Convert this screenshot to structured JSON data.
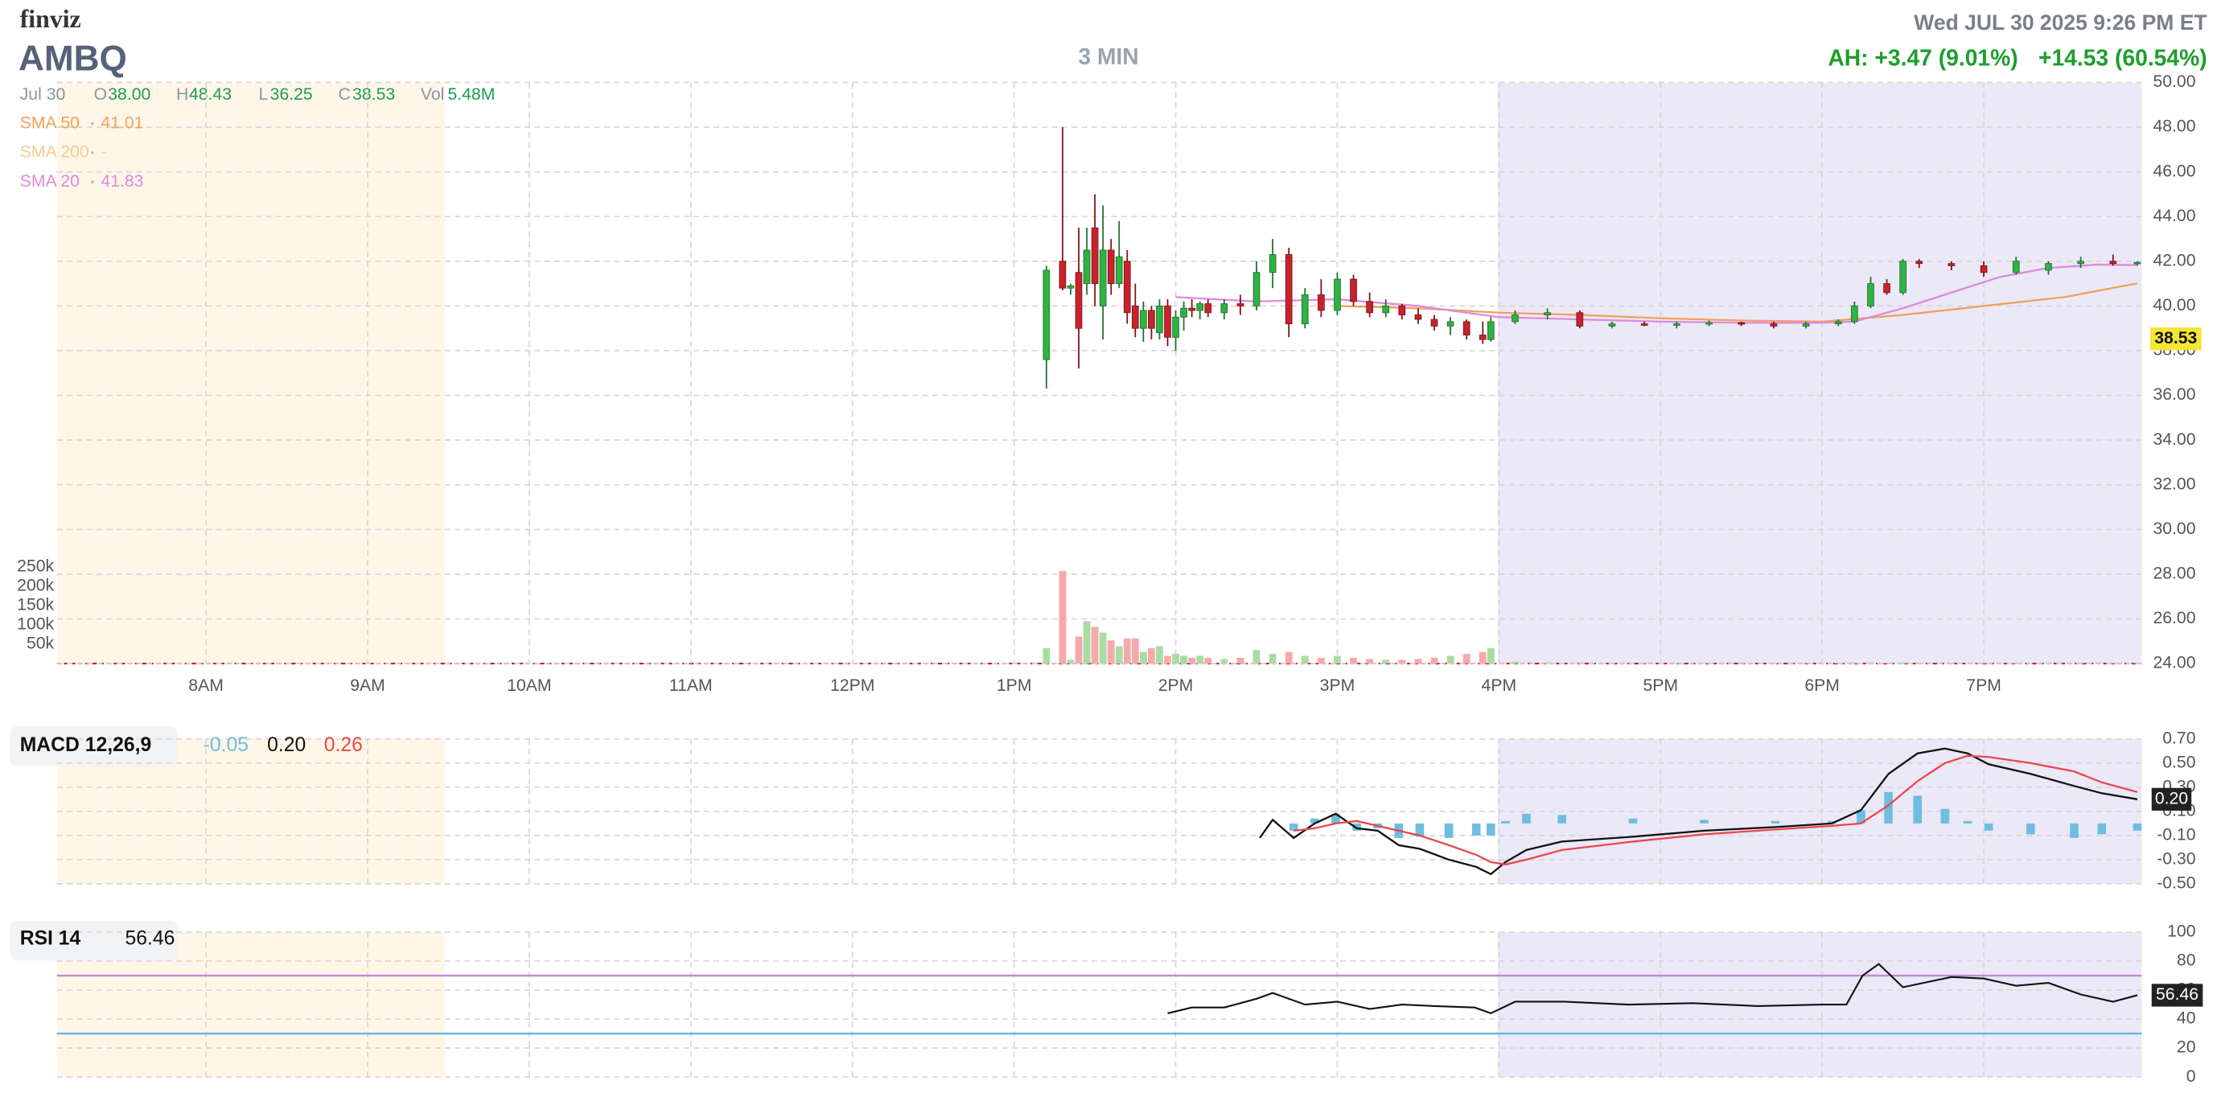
{
  "header": {
    "brand": "finviz",
    "ticker": "AMBQ",
    "timeframe": "3 MIN",
    "datetime": "Wed JUL 30 2025 9:26 PM ET",
    "after_hours": "AH: +3.47 (9.01%)",
    "change": "+14.53 (60.54%)",
    "date": "Jul 30",
    "stats": [
      {
        "label": "O",
        "value": "38.00"
      },
      {
        "label": "H",
        "value": "48.43"
      },
      {
        "label": "L",
        "value": "36.25"
      },
      {
        "label": "C",
        "value": "38.53"
      },
      {
        "label": "Vol",
        "value": "5.48M"
      }
    ]
  },
  "chart_data": [
    {
      "type": "candlestick",
      "up_color": "#2fb344",
      "down_color": "#c8232c",
      "volume_up_color": "#a9dca3",
      "volume_down_color": "#f6a9ab",
      "last_price": 38.53,
      "xlim": [
        7.077,
        19.977
      ],
      "xticks": [
        {
          "value": 8,
          "label": "8AM"
        },
        {
          "value": 9,
          "label": "9AM"
        },
        {
          "value": 10,
          "label": "10AM"
        },
        {
          "value": 11,
          "label": "11AM"
        },
        {
          "value": 12,
          "label": "12PM"
        },
        {
          "value": 13,
          "label": "1PM"
        },
        {
          "value": 14,
          "label": "2PM"
        },
        {
          "value": 15,
          "label": "3PM"
        },
        {
          "value": 16,
          "label": "4PM"
        },
        {
          "value": 17,
          "label": "5PM"
        },
        {
          "value": 18,
          "label": "6PM"
        },
        {
          "value": 19,
          "label": "7PM"
        }
      ],
      "ylim": [
        24,
        50
      ],
      "yticks": [
        {
          "value": 24,
          "label": "24.00"
        },
        {
          "value": 26,
          "label": "26.00"
        },
        {
          "value": 28,
          "label": "28.00"
        },
        {
          "value": 30,
          "label": "30.00"
        },
        {
          "value": 32,
          "label": "32.00"
        },
        {
          "value": 34,
          "label": "34.00"
        },
        {
          "value": 36,
          "label": "36.00"
        },
        {
          "value": 38,
          "label": "38.00"
        },
        {
          "value": 40,
          "label": "40.00"
        },
        {
          "value": 42,
          "label": "42.00"
        },
        {
          "value": 44,
          "label": "44.00"
        },
        {
          "value": 46,
          "label": "46.00"
        },
        {
          "value": 48,
          "label": "48.00"
        },
        {
          "value": 50,
          "label": "50.00"
        }
      ],
      "volume_lim": [
        0,
        250000
      ],
      "volume_ticks": [
        {
          "value": 50000,
          "label": "50k"
        },
        {
          "value": 100000,
          "label": "100k"
        },
        {
          "value": 150000,
          "label": "150k"
        },
        {
          "value": 200000,
          "label": "200k"
        },
        {
          "value": 250000,
          "label": "250k"
        }
      ],
      "x": [
        13.2,
        13.3,
        13.35,
        13.4,
        13.45,
        13.5,
        13.55,
        13.6,
        13.65,
        13.7,
        13.75,
        13.8,
        13.85,
        13.9,
        13.95,
        14.0,
        14.05,
        14.1,
        14.15,
        14.2,
        14.3,
        14.4,
        14.5,
        14.6,
        14.7,
        14.8,
        14.9,
        15.0,
        15.1,
        15.2,
        15.3,
        15.4,
        15.5,
        15.6,
        15.7,
        15.8,
        15.9,
        15.95,
        16.1,
        16.3,
        16.5,
        16.7,
        16.9,
        17.1,
        17.3,
        17.5,
        17.7,
        17.9,
        18.1,
        18.2,
        18.3,
        18.4,
        18.5,
        18.6,
        18.8,
        19.0,
        19.2,
        19.4,
        19.6,
        19.8,
        19.95
      ],
      "open": [
        37.6,
        42.0,
        40.8,
        41.5,
        41.0,
        43.5,
        40.0,
        42.5,
        41.0,
        42.0,
        40.0,
        39.0,
        39.8,
        38.8,
        40.0,
        38.6,
        39.5,
        39.9,
        39.8,
        40.1,
        39.7,
        40.1,
        40.0,
        41.5,
        42.3,
        39.2,
        40.5,
        39.8,
        41.2,
        40.2,
        39.7,
        40.0,
        39.6,
        39.4,
        39.1,
        39.3,
        38.7,
        38.5,
        39.3,
        39.6,
        39.7,
        39.1,
        39.2,
        39.15,
        39.2,
        39.25,
        39.2,
        39.1,
        39.2,
        39.3,
        40.0,
        41.0,
        40.6,
        42.0,
        41.9,
        41.8,
        41.5,
        41.6,
        41.9,
        42.0,
        41.9
      ],
      "high": [
        41.8,
        48.0,
        41.0,
        43.5,
        43.5,
        45.0,
        44.5,
        43.0,
        43.8,
        42.5,
        41.0,
        40.2,
        40.0,
        40.3,
        40.3,
        39.8,
        40.2,
        40.3,
        40.2,
        40.3,
        40.3,
        40.5,
        42.0,
        43.0,
        42.6,
        40.8,
        41.2,
        41.5,
        41.4,
        40.6,
        40.3,
        40.1,
        39.9,
        39.6,
        39.5,
        39.4,
        39.3,
        39.5,
        39.8,
        39.9,
        39.8,
        39.3,
        39.3,
        39.3,
        39.35,
        39.3,
        39.3,
        39.3,
        39.4,
        40.2,
        41.3,
        41.2,
        42.1,
        42.1,
        42.0,
        42.0,
        42.2,
        42.0,
        42.2,
        42.3,
        42.0
      ],
      "low": [
        36.3,
        40.7,
        40.5,
        37.2,
        40.5,
        40.0,
        38.5,
        40.5,
        40.8,
        39.2,
        38.6,
        38.4,
        38.5,
        38.5,
        38.2,
        38.0,
        38.9,
        39.5,
        39.4,
        39.5,
        39.4,
        39.6,
        39.8,
        40.8,
        38.6,
        39.0,
        39.5,
        39.6,
        40.0,
        39.5,
        39.5,
        39.4,
        39.2,
        38.9,
        38.7,
        38.5,
        38.3,
        38.4,
        39.2,
        39.4,
        39.0,
        39.0,
        39.1,
        39.0,
        39.1,
        39.1,
        39.0,
        39.0,
        39.1,
        39.2,
        39.9,
        40.5,
        40.5,
        41.7,
        41.6,
        41.3,
        41.4,
        41.4,
        41.7,
        41.8,
        41.8
      ],
      "close": [
        41.6,
        40.8,
        40.9,
        39.0,
        42.5,
        41.0,
        42.5,
        41.0,
        42.2,
        39.7,
        39.0,
        39.8,
        39.0,
        40.0,
        38.6,
        39.5,
        39.9,
        39.8,
        40.1,
        39.7,
        40.1,
        40.0,
        41.5,
        42.3,
        39.2,
        40.5,
        39.8,
        41.2,
        40.2,
        39.7,
        40.0,
        39.6,
        39.4,
        39.1,
        39.3,
        38.7,
        38.5,
        39.3,
        39.6,
        39.7,
        39.1,
        39.2,
        39.15,
        39.2,
        39.25,
        39.2,
        39.1,
        39.2,
        39.3,
        40.0,
        41.0,
        40.6,
        42.0,
        41.9,
        41.8,
        41.5,
        42.0,
        41.9,
        42.0,
        41.9,
        41.95
      ],
      "volume": [
        40000,
        240000,
        10000,
        70000,
        110000,
        95000,
        80000,
        60000,
        45000,
        65000,
        65000,
        30000,
        40000,
        45000,
        20000,
        25000,
        20000,
        15000,
        20000,
        15000,
        12000,
        15000,
        35000,
        25000,
        30000,
        20000,
        15000,
        20000,
        15000,
        12000,
        10000,
        10000,
        12000,
        15000,
        20000,
        25000,
        30000,
        40000,
        5000,
        3000,
        3000,
        2000,
        2000,
        2000,
        2000,
        2000,
        2000,
        2000,
        2000,
        3000,
        3000,
        2000,
        3000,
        2000,
        2000,
        2000,
        2000,
        2000,
        2000,
        2000,
        2000
      ],
      "sma": [
        {
          "name": "SMA 50",
          "color": "#f0a15c",
          "value_label": "41.01",
          "x": [
            15.0,
            15.5,
            16.0,
            16.5,
            17.0,
            17.5,
            18.0,
            18.5,
            19.0,
            19.5,
            19.95
          ],
          "values": [
            40.0,
            39.9,
            39.7,
            39.6,
            39.45,
            39.35,
            39.3,
            39.6,
            40.0,
            40.4,
            41.01
          ]
        },
        {
          "name": "SMA 200",
          "color": "#f3cd94",
          "value_label": "-",
          "x": [],
          "values": []
        },
        {
          "name": "SMA 20",
          "color": "#de8ade",
          "value_label": "41.83",
          "x": [
            14.0,
            14.5,
            15.0,
            15.5,
            16.0,
            16.5,
            17.0,
            17.5,
            18.0,
            18.2,
            18.5,
            18.8,
            19.1,
            19.4,
            19.7,
            19.95
          ],
          "values": [
            40.4,
            40.2,
            40.3,
            40.0,
            39.5,
            39.4,
            39.3,
            39.25,
            39.25,
            39.3,
            39.9,
            40.6,
            41.3,
            41.7,
            41.85,
            41.83
          ]
        }
      ]
    },
    {
      "type": "macd",
      "title": "MACD 12,26,9",
      "ylim": [
        -0.5,
        0.7
      ],
      "yticks": [
        {
          "value": -0.5,
          "label": "-0.50"
        },
        {
          "value": -0.3,
          "label": "-0.30"
        },
        {
          "value": -0.1,
          "label": "-0.10"
        },
        {
          "value": 0.1,
          "label": "0.10"
        },
        {
          "value": 0.3,
          "label": "0.30"
        },
        {
          "value": 0.5,
          "label": "0.50"
        },
        {
          "value": 0.7,
          "label": "0.70"
        }
      ],
      "x": [
        14.52,
        14.6,
        14.73,
        14.86,
        14.99,
        15.12,
        15.25,
        15.38,
        15.51,
        15.69,
        15.86,
        15.95,
        16.04,
        16.17,
        16.39,
        16.83,
        17.27,
        17.71,
        18.06,
        18.24,
        18.41,
        18.59,
        18.76,
        18.9,
        19.03,
        19.29,
        19.56,
        19.73,
        19.95
      ],
      "series": [
        {
          "kind": "bar",
          "color": "#6fbde0",
          "value_label": "-0.05",
          "values": [
            null,
            null,
            -0.06,
            0.04,
            0.08,
            -0.06,
            -0.04,
            -0.12,
            -0.11,
            -0.12,
            -0.1,
            -0.1,
            0.02,
            0.08,
            0.07,
            0.04,
            0.03,
            0.02,
            0.02,
            0.11,
            0.26,
            0.23,
            0.12,
            0.02,
            -0.06,
            -0.09,
            -0.12,
            -0.09,
            -0.06
          ]
        },
        {
          "kind": "line",
          "color": "#111111",
          "value_label": "0.20",
          "values": [
            -0.12,
            0.03,
            -0.12,
            0.0,
            0.08,
            -0.04,
            -0.06,
            -0.18,
            -0.21,
            -0.3,
            -0.36,
            -0.42,
            -0.32,
            -0.22,
            -0.15,
            -0.11,
            -0.06,
            -0.03,
            0.0,
            0.11,
            0.41,
            0.58,
            0.62,
            0.58,
            0.49,
            0.41,
            0.31,
            0.25,
            0.2
          ]
        },
        {
          "kind": "line",
          "color": "#e8484f",
          "value_label": "0.26",
          "values": [
            null,
            null,
            -0.06,
            -0.04,
            0.0,
            0.02,
            -0.02,
            -0.06,
            -0.1,
            -0.18,
            -0.26,
            -0.32,
            -0.34,
            -0.3,
            -0.22,
            -0.15,
            -0.09,
            -0.05,
            -0.02,
            0.0,
            0.15,
            0.35,
            0.5,
            0.56,
            0.55,
            0.5,
            0.43,
            0.34,
            0.26
          ]
        }
      ]
    },
    {
      "type": "rsi",
      "title": "RSI 14",
      "ylim": [
        0,
        100
      ],
      "yticks": [
        0,
        20,
        40,
        60,
        80,
        100
      ],
      "levels": [
        {
          "value": 70,
          "color": "#c985d8"
        },
        {
          "value": 30,
          "color": "#66b0e6"
        }
      ],
      "x": [
        13.95,
        14.1,
        14.3,
        14.5,
        14.6,
        14.8,
        15.0,
        15.2,
        15.4,
        15.6,
        15.85,
        15.95,
        16.1,
        16.4,
        16.8,
        17.2,
        17.6,
        18.0,
        18.15,
        18.25,
        18.35,
        18.5,
        18.8,
        19.0,
        19.2,
        19.4,
        19.6,
        19.8,
        19.95
      ],
      "series": [
        {
          "color": "#111111",
          "values": [
            44,
            48,
            48,
            54,
            58,
            50,
            52,
            47,
            50,
            49,
            48,
            44,
            52,
            52,
            50,
            51,
            49,
            50,
            50,
            70,
            78,
            62,
            69,
            68,
            63,
            65,
            57,
            52,
            56.46
          ]
        }
      ]
    }
  ]
}
